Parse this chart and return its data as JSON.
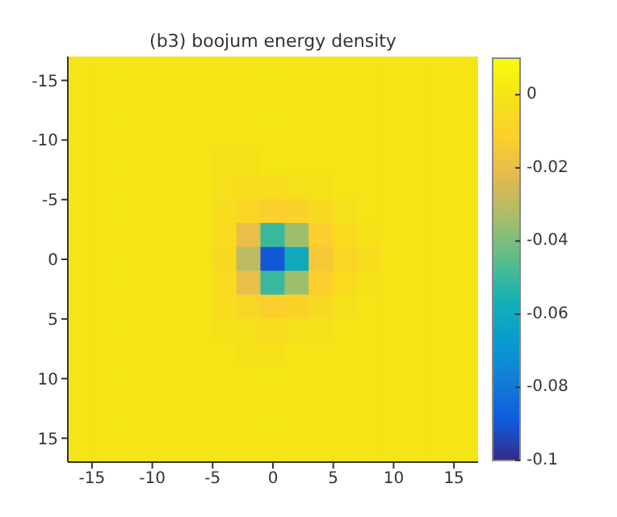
{
  "chart_data": {
    "type": "heatmap",
    "title": "(b3) boojum energy density",
    "xlim": [
      -17,
      17
    ],
    "ylim": [
      17,
      -17
    ],
    "xticks": [
      -15,
      -10,
      -5,
      0,
      5,
      10,
      15
    ],
    "yticks": [
      -15,
      -10,
      -5,
      0,
      5,
      10,
      15
    ],
    "clim": [
      -0.1,
      0.01
    ],
    "cticks": [
      0,
      -0.02,
      -0.04,
      -0.06,
      -0.08,
      -0.1
    ],
    "cells": [
      [
        0,
        0,
        0,
        0,
        0,
        0,
        0,
        0,
        0,
        0,
        0,
        0,
        0,
        0,
        0,
        0,
        0
      ],
      [
        0,
        0,
        0,
        0,
        0,
        0,
        0,
        0,
        0,
        0,
        0,
        0,
        0,
        0,
        0,
        0,
        0
      ],
      [
        0,
        0,
        0,
        0,
        0,
        0,
        0,
        0,
        0,
        0,
        0,
        0,
        0,
        0,
        0,
        0,
        0
      ],
      [
        0,
        0,
        0,
        0,
        0,
        0,
        0,
        0,
        0,
        0,
        0,
        0,
        0,
        0,
        0,
        0,
        0
      ],
      [
        0,
        0,
        0,
        0,
        0,
        0,
        -0.002,
        -0.002,
        0,
        0,
        0,
        0,
        0,
        0,
        0,
        0,
        0
      ],
      [
        0,
        0,
        0,
        0,
        0,
        0,
        -0.003,
        -0.004,
        -0.004,
        -0.003,
        -0.002,
        0,
        0,
        0,
        0,
        0,
        0
      ],
      [
        0,
        0,
        0,
        0,
        0,
        0,
        -0.004,
        -0.008,
        -0.012,
        -0.01,
        -0.006,
        -0.003,
        0,
        0,
        0,
        0,
        0
      ],
      [
        0,
        0,
        0,
        0,
        0,
        0,
        -0.005,
        -0.02,
        -0.05,
        -0.035,
        -0.012,
        -0.005,
        -0.002,
        0,
        0,
        0,
        0
      ],
      [
        0,
        0,
        0,
        0,
        0,
        0,
        -0.006,
        -0.03,
        -0.09,
        -0.06,
        -0.015,
        -0.008,
        -0.004,
        0,
        0,
        0,
        0
      ],
      [
        0,
        0,
        0,
        0,
        0,
        0,
        -0.005,
        -0.02,
        -0.05,
        -0.035,
        -0.012,
        -0.005,
        -0.002,
        0,
        0,
        0,
        0
      ],
      [
        0,
        0,
        0,
        0,
        0,
        0,
        -0.004,
        -0.008,
        -0.012,
        -0.01,
        -0.006,
        -0.003,
        0,
        0,
        0,
        0,
        0
      ],
      [
        0,
        0,
        0,
        0,
        0,
        0,
        -0.002,
        -0.003,
        -0.004,
        -0.003,
        -0.002,
        0,
        0,
        0,
        0,
        0,
        0
      ],
      [
        0,
        0,
        0,
        0,
        0,
        0,
        0,
        -0.002,
        -0.002,
        0,
        0,
        0,
        0,
        0,
        0,
        0,
        0
      ],
      [
        0,
        0,
        0,
        0,
        0,
        0,
        0,
        0,
        0,
        0,
        0,
        0,
        0,
        0,
        0,
        0,
        0
      ],
      [
        0,
        0,
        0,
        0,
        0,
        0,
        0,
        0,
        0,
        0,
        0,
        0,
        0,
        0,
        0,
        0,
        0
      ],
      [
        0,
        0,
        0,
        0,
        0,
        0,
        0,
        0,
        0,
        0,
        0,
        0,
        0,
        0,
        0,
        0,
        0
      ],
      [
        0,
        0,
        0,
        0,
        0,
        0,
        0,
        0,
        0,
        0,
        0,
        0,
        0,
        0,
        0,
        0,
        0
      ]
    ]
  }
}
